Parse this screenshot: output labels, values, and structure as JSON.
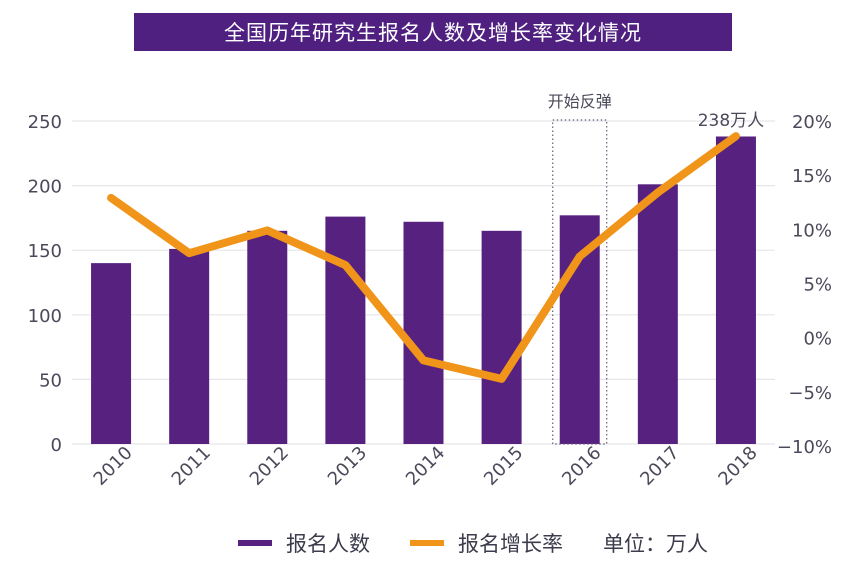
{
  "title": "全国历年研究生报名人数及增长率变化情况",
  "colors": {
    "bar": "#57217f",
    "line": "#f0951a",
    "title_bg": "#4f2080",
    "grid": "#e6e6ea",
    "text": "#4a4a5a"
  },
  "chart_data": {
    "type": "bar",
    "title": "全国历年研究生报名人数及增长率变化情况",
    "categories": [
      "2010",
      "2011",
      "2012",
      "2013",
      "2014",
      "2015",
      "2016",
      "2017",
      "2018"
    ],
    "series": [
      {
        "name": "报名人数",
        "type": "bar",
        "axis": "left",
        "values": [
          140,
          151,
          165,
          176,
          172,
          165,
          177,
          201,
          238
        ]
      },
      {
        "name": "报名增长率",
        "type": "line",
        "axis": "right",
        "unit": "%",
        "values": [
          12.9,
          7.8,
          9.9,
          6.7,
          -2.1,
          -3.8,
          7.5,
          13.4,
          18.6
        ]
      }
    ],
    "y_left": {
      "ylim": [
        0,
        250
      ],
      "ticks": [
        "0",
        "50",
        "100",
        "150",
        "200",
        "250"
      ]
    },
    "y_right": {
      "ylim": [
        -10,
        20
      ],
      "ticks": [
        "-10%",
        "-5%",
        "0%",
        "5%",
        "10%",
        "15%",
        "20%"
      ]
    },
    "xlabel": "",
    "ylabel": "",
    "grid": true,
    "legend": {
      "position": "bottom",
      "entries": [
        "报名人数",
        "报名增长率"
      ],
      "unit_note": "单位：万人"
    },
    "annotations": [
      {
        "text": "开始反弹",
        "target": "2016",
        "style": "dotted-box"
      },
      {
        "text": "238万人",
        "target": "2018"
      }
    ]
  }
}
